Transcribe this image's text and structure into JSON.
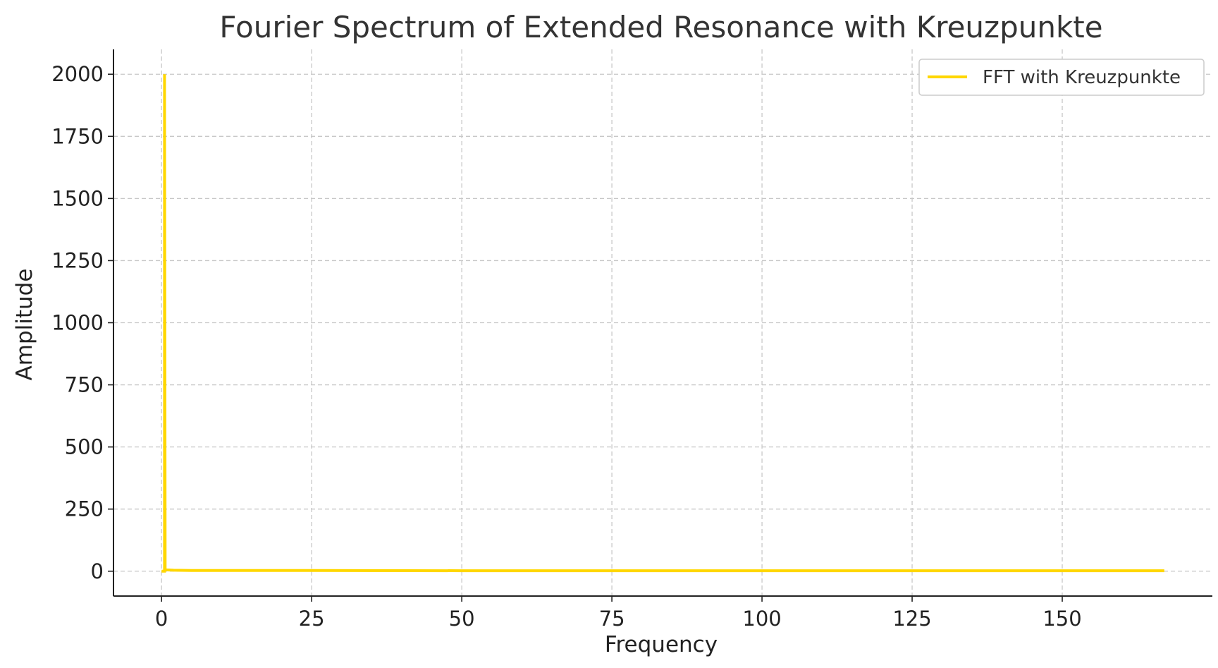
{
  "chart_data": {
    "type": "line",
    "title": "Fourier Spectrum of Extended Resonance with Kreuzpunkte",
    "xlabel": "Frequency",
    "ylabel": "Amplitude",
    "xlim": [
      -8,
      175
    ],
    "ylim": [
      -100,
      2100
    ],
    "xticks": [
      0,
      25,
      50,
      75,
      100,
      125,
      150
    ],
    "yticks": [
      0,
      250,
      500,
      750,
      1000,
      1250,
      1500,
      1750,
      2000
    ],
    "grid": true,
    "legend_position": "top-right",
    "series": [
      {
        "name": "FFT with Kreuzpunkte",
        "color": "#FFD700",
        "x": [
          0,
          0.5,
          0.5,
          0.6,
          1,
          2,
          5,
          25,
          50,
          75,
          100,
          125,
          150,
          167
        ],
        "y": [
          0,
          0,
          2000,
          5,
          5,
          4,
          3,
          3,
          2,
          2,
          2,
          2,
          2,
          2
        ]
      }
    ]
  }
}
